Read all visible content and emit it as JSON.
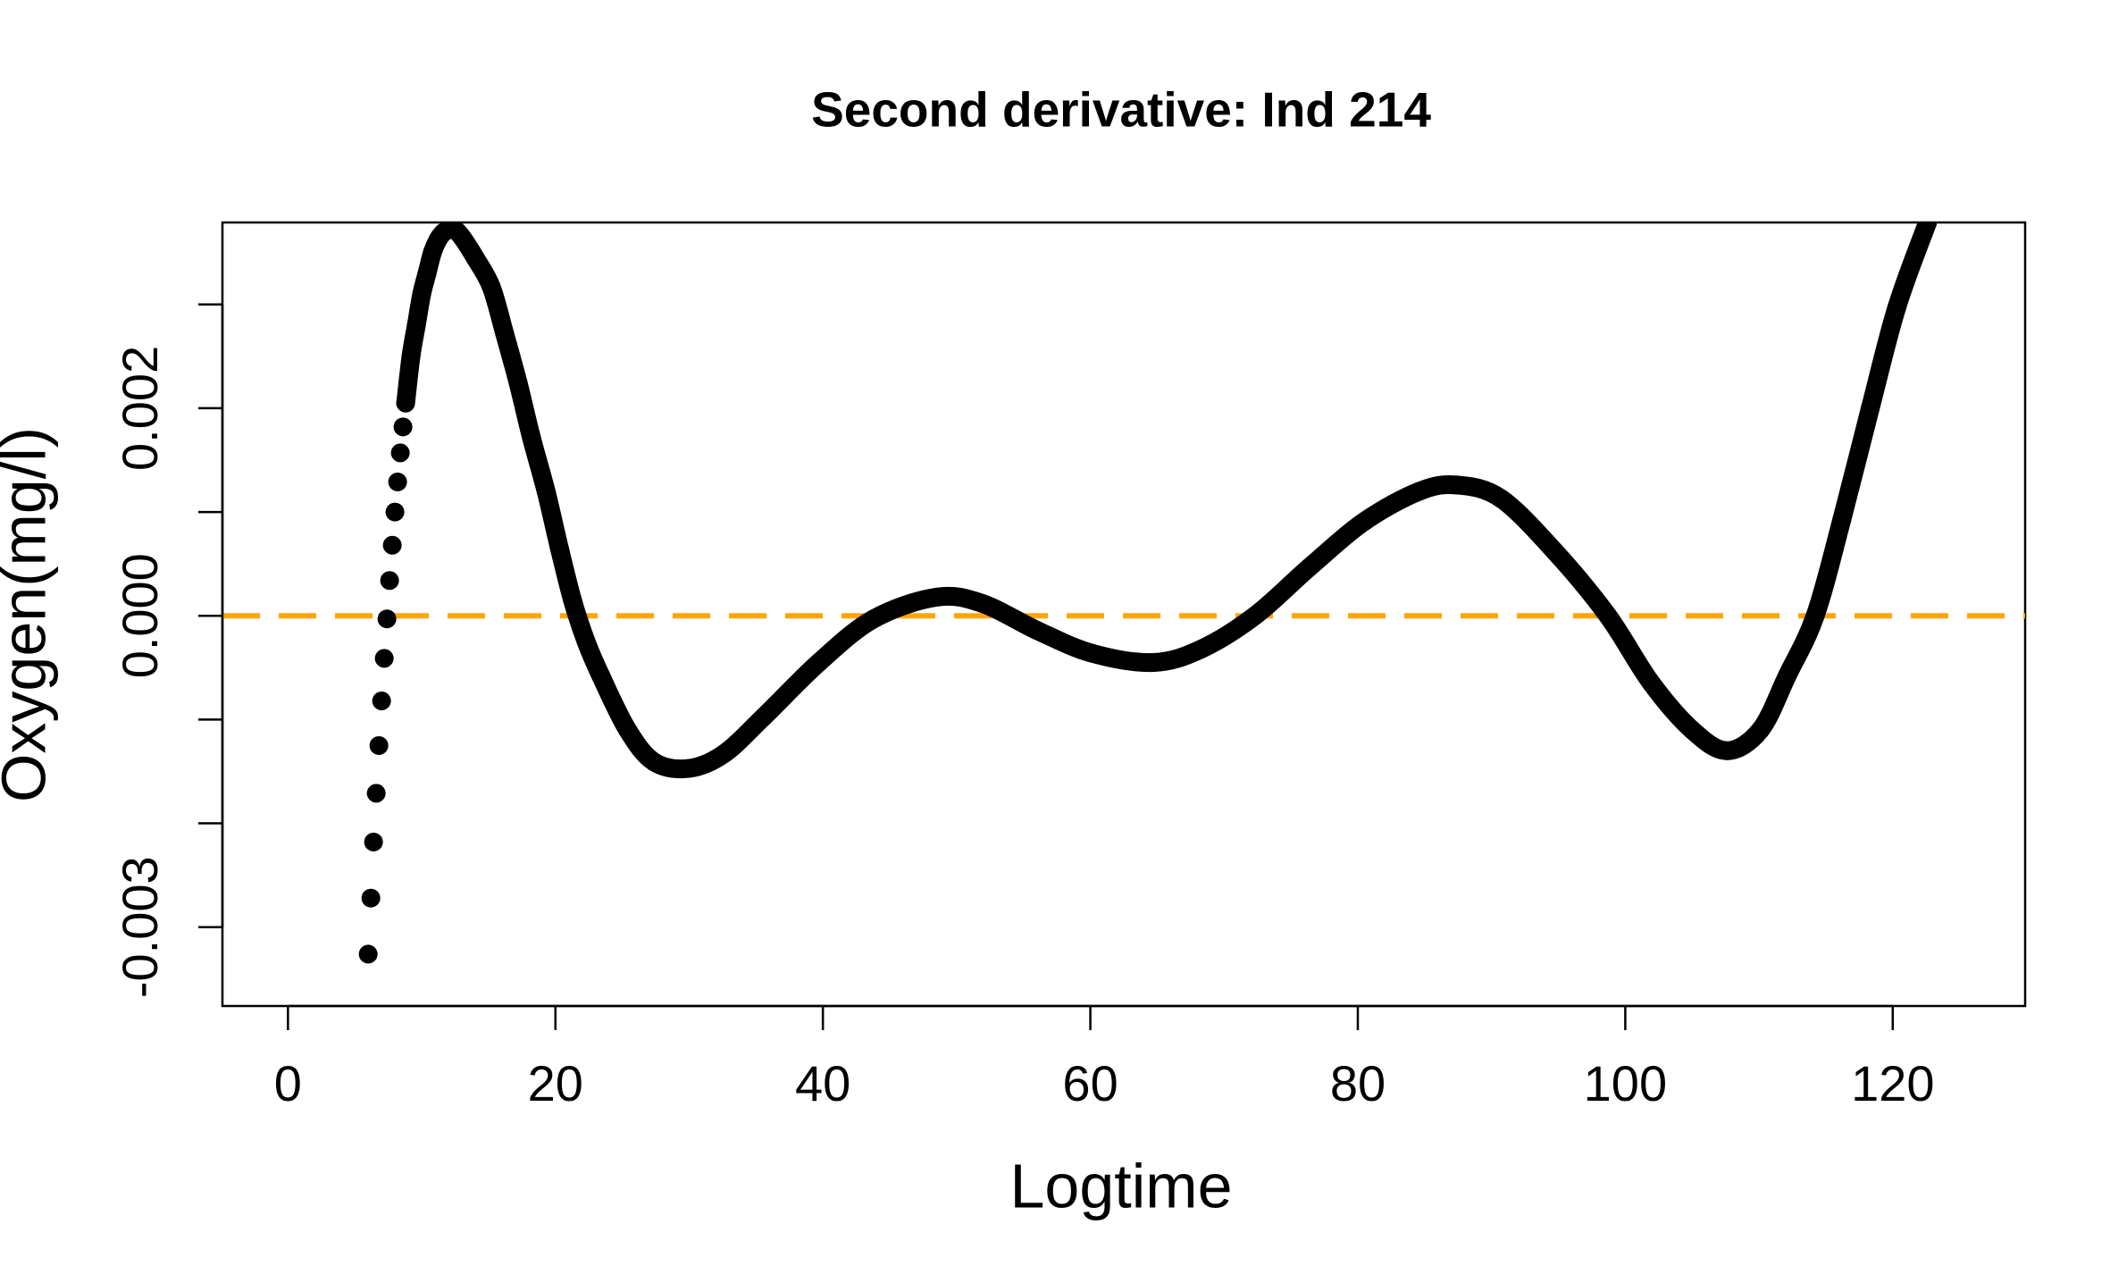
{
  "chart_data": {
    "type": "scatter",
    "title": "Second derivative: Ind 214",
    "xlabel": "Logtime",
    "ylabel": "Oxygen(mg/l)",
    "xlim": [
      -4.9,
      129.9
    ],
    "ylim": [
      -0.00376,
      0.00379
    ],
    "xticks": [
      0,
      20,
      40,
      60,
      80,
      100,
      120
    ],
    "yticks": [
      -0.003,
      {
        "value": -0.002,
        "label": null
      },
      {
        "value": -0.001,
        "label": null
      },
      {
        "value": 0,
        "label": "0.000"
      },
      {
        "value": 0.001,
        "label": null
      },
      0.002,
      {
        "value": 0.003,
        "label": null
      }
    ],
    "hlines": [
      {
        "y": 0,
        "color": "#FFA500",
        "style": "dashed"
      }
    ],
    "series": [
      {
        "color": "#000000",
        "x": [
          6.0,
          6.2,
          6.4,
          6.6,
          6.8,
          7.0,
          7.2,
          7.4,
          7.6,
          7.8,
          8.0,
          8.2,
          8.4,
          8.6,
          8.8,
          9.2,
          9.6,
          10.0,
          10.4,
          10.8,
          11.2,
          11.6,
          12.0,
          12.4,
          13.0,
          14.0,
          15.2,
          16.2,
          17.2,
          18.2,
          19.3,
          20.3,
          21.3,
          22.3,
          23.4,
          25.4,
          27.4,
          30.0,
          32.6,
          35.6,
          39.7,
          43.8,
          48.5,
          51.9,
          56.0,
          60.1,
          64.7,
          68.3,
          72.3,
          76.4,
          80.5,
          84.6,
          87.4,
          90.7,
          94.8,
          98.7,
          101.9,
          105.0,
          107.6,
          110.1,
          112.1,
          114.2,
          116.2,
          118.3,
          120.3,
          122.6
        ],
        "values": [
          -0.00326,
          -0.00272,
          -0.00218,
          -0.00171,
          -0.00125,
          -0.00082,
          -0.00041,
          -3e-05,
          0.00034,
          0.00068,
          0.001,
          0.00129,
          0.00157,
          0.00182,
          0.00205,
          0.0025,
          0.0028,
          0.0031,
          0.0033,
          0.0035,
          0.00362,
          0.00369,
          0.00372,
          0.00373,
          0.00365,
          0.00345,
          0.00317,
          0.00272,
          0.00225,
          0.00172,
          0.0012,
          0.00065,
          0.00014,
          -0.00025,
          -0.00058,
          -0.0011,
          -0.00141,
          -0.00147,
          -0.00133,
          -0.00097,
          -0.00045,
          -3e-05,
          0.00018,
          0.00012,
          -0.00014,
          -0.00036,
          -0.00045,
          -0.00032,
          0,
          0.00047,
          0.00091,
          0.0012,
          0.00126,
          0.00113,
          0.00061,
          0,
          -0.00064,
          -0.0011,
          -0.0013,
          -0.0011,
          -0.00058,
          0,
          0.00093,
          0.00199,
          0.00297,
          0.00379
        ]
      }
    ]
  }
}
